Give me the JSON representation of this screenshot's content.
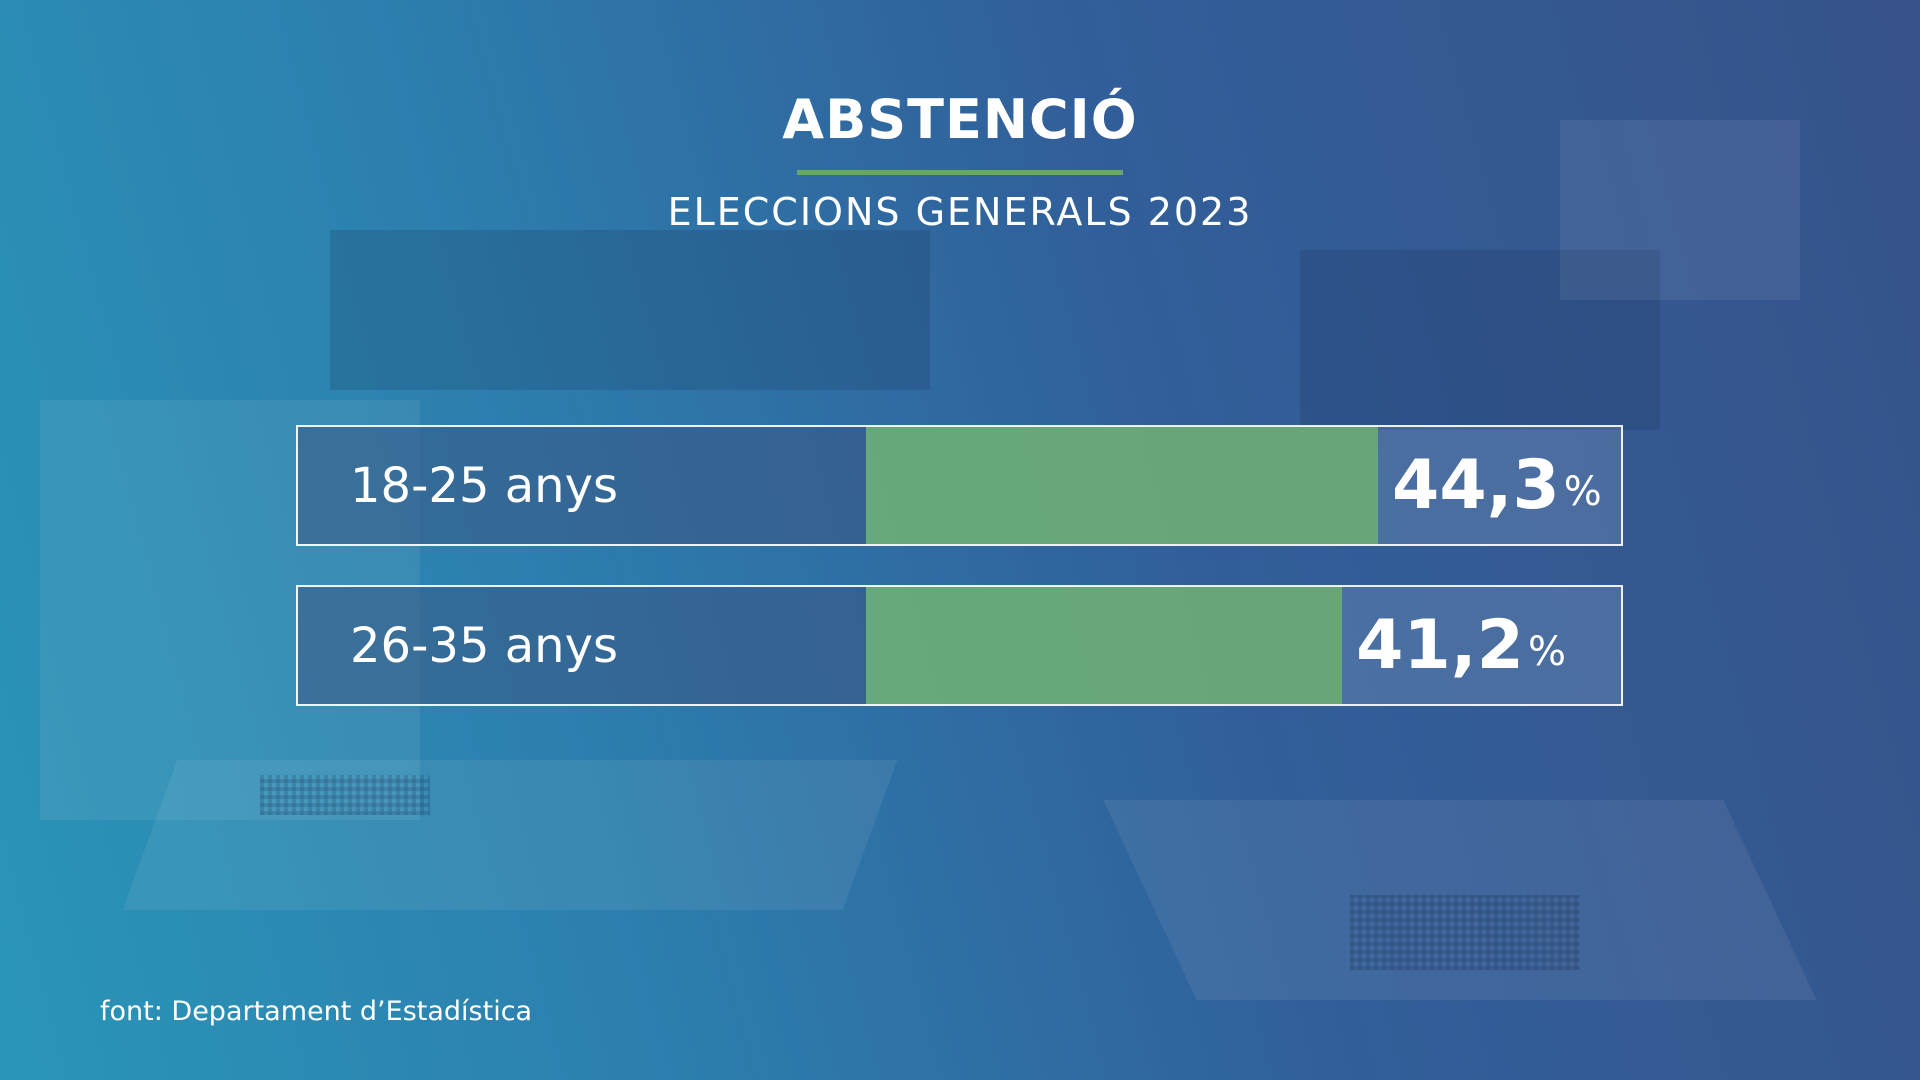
{
  "title": "ABSTENCIÓ",
  "subtitle": "ELECCIONS GENERALS 2023",
  "source": "font: Departament d’Estadística",
  "colors": {
    "bar": "#6aa56e",
    "rule": "#6aa56e",
    "text": "#ffffff"
  },
  "chart_data": {
    "type": "bar",
    "categories": [
      "18-25 anys",
      "26-35 anys"
    ],
    "values": [
      44.3,
      41.2
    ],
    "value_labels": [
      "44,3",
      "41,2"
    ],
    "unit": "%",
    "title": "ABSTENCIÓ",
    "subtitle": "ELECCIONS GENERALS 2023",
    "orientation": "horizontal",
    "grid": false
  }
}
